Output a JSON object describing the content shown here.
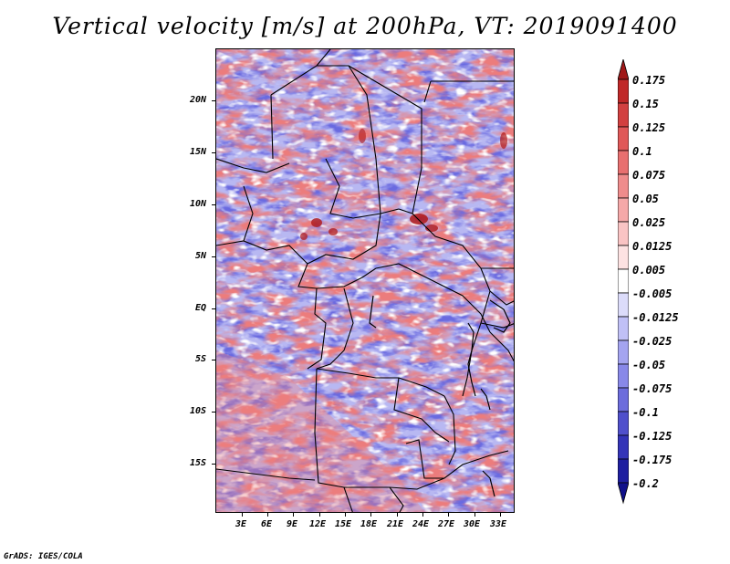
{
  "title": "Vertical velocity [m/s] at 200hPa, VT: 2019091400",
  "credit": "GrADS: IGES/COLA",
  "lat_labels": [
    "20N",
    "15N",
    "10N",
    "5N",
    "EQ",
    "5S",
    "10S",
    "15S"
  ],
  "lon_labels": [
    "3E",
    "6E",
    "9E",
    "12E",
    "15E",
    "18E",
    "21E",
    "24E",
    "27E",
    "30E",
    "33E"
  ],
  "colorbar_labels": [
    "0.175",
    "0.15",
    "0.125",
    "0.1",
    "0.075",
    "0.05",
    "0.025",
    "0.0125",
    "0.005",
    "-0.005",
    "-0.0125",
    "-0.025",
    "-0.05",
    "-0.075",
    "-0.1",
    "-0.125",
    "-0.175",
    "-0.2"
  ],
  "colorbar_colors": [
    "#a01818",
    "#c02828",
    "#d24040",
    "#e05858",
    "#e87070",
    "#ef8c8c",
    "#f5a8a8",
    "#fac4c4",
    "#fde2e2",
    "#ffffff",
    "#dcdcfa",
    "#c0c0f6",
    "#a4a4f0",
    "#8888e8",
    "#6c6cdc",
    "#5050cc",
    "#3434b8",
    "#1e1ea0",
    "#10108a"
  ],
  "colors": {
    "positive": "#e86060",
    "negative": "#5a5ad8",
    "background": "#eeeefc",
    "border": "#000000"
  }
}
